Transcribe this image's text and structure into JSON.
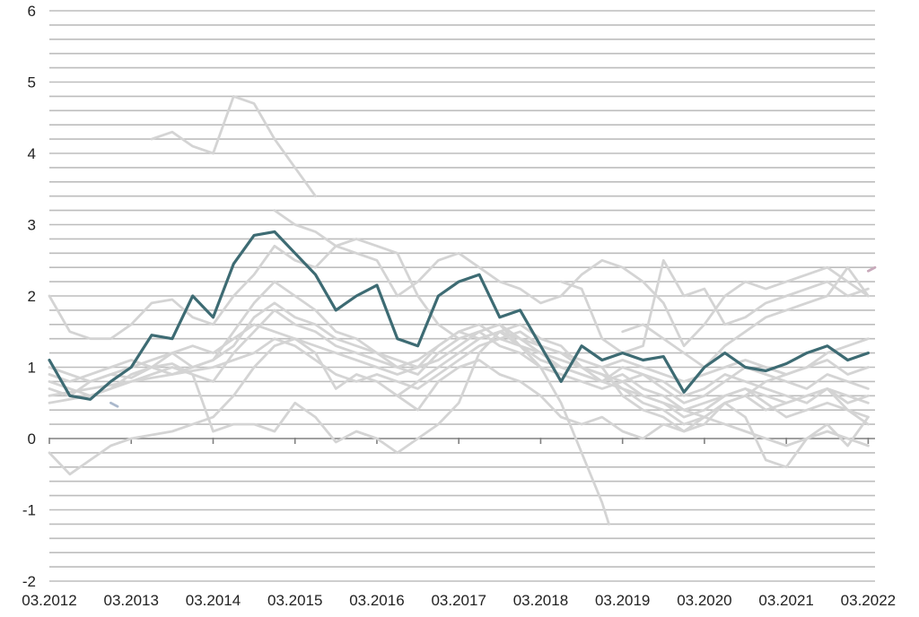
{
  "chart_data": {
    "type": "line",
    "title": "",
    "xlabel": "",
    "ylabel": "",
    "ylim": [
      -2,
      6
    ],
    "xlim": [
      "2012-03",
      "2022-04"
    ],
    "y_ticks": [
      "6",
      "5",
      "4",
      "3",
      "2",
      "1",
      "0",
      "-1",
      "-2"
    ],
    "x_ticks": [
      "03.2012",
      "03.2013",
      "03.2014",
      "03.2015",
      "03.2016",
      "03.2017",
      "03.2018",
      "03.2019",
      "03.2020",
      "03.2021",
      "03.2022"
    ],
    "grid": true,
    "legend": "none",
    "colors": {
      "highlight": "#3d6b73",
      "background_series": "#d4d4d4",
      "grid": "#bdbdbd",
      "zero_line": "#808080"
    },
    "series": [
      {
        "color": "#3d6b73",
        "highlight": true,
        "x": [
          "2012-03",
          "2012-06",
          "2012-09",
          "2012-12",
          "2013-03",
          "2013-06",
          "2013-09",
          "2013-12",
          "2014-03",
          "2014-06",
          "2014-09",
          "2014-12",
          "2015-03",
          "2015-06",
          "2015-09",
          "2015-12",
          "2016-03",
          "2016-06",
          "2016-09",
          "2016-12",
          "2017-03",
          "2017-06",
          "2017-09",
          "2017-12",
          "2018-03",
          "2018-06",
          "2018-09",
          "2018-12",
          "2019-03",
          "2019-06",
          "2019-09",
          "2019-12",
          "2020-03",
          "2020-06",
          "2020-09",
          "2020-12",
          "2021-03",
          "2021-06",
          "2021-09",
          "2021-12",
          "2022-03"
        ],
        "y": [
          1.1,
          0.6,
          0.55,
          0.8,
          1.0,
          1.45,
          1.4,
          2.0,
          1.7,
          2.45,
          2.85,
          2.9,
          2.6,
          2.3,
          1.8,
          2.0,
          2.15,
          1.4,
          1.3,
          2.0,
          2.2,
          2.3,
          1.7,
          1.8,
          1.3,
          0.8,
          1.3,
          1.1,
          1.2,
          1.1,
          1.15,
          0.65,
          1.0,
          1.2,
          1.0,
          0.95,
          1.05,
          1.2,
          1.3,
          1.1,
          1.2
        ]
      },
      {
        "color": "#d4d4d4",
        "x": [
          "2012-03",
          "2012-06",
          "2012-09",
          "2012-12",
          "2013-03",
          "2013-06",
          "2013-09",
          "2013-12",
          "2014-03",
          "2014-06",
          "2014-09",
          "2014-12",
          "2015-03",
          "2015-06",
          "2015-09",
          "2015-12",
          "2016-03",
          "2016-06",
          "2016-09",
          "2016-12",
          "2017-03",
          "2017-06",
          "2017-09",
          "2017-12",
          "2018-03",
          "2018-06",
          "2018-09",
          "2018-12",
          "2019-03",
          "2019-06",
          "2019-09",
          "2019-12",
          "2020-03",
          "2020-06",
          "2020-09",
          "2020-12",
          "2021-03",
          "2021-06",
          "2021-09",
          "2021-12",
          "2022-03"
        ],
        "y": [
          2.0,
          1.5,
          1.4,
          1.4,
          1.6,
          1.9,
          1.95,
          1.7,
          1.6,
          2.0,
          2.3,
          2.7,
          2.5,
          2.4,
          2.7,
          2.6,
          2.5,
          2.0,
          2.2,
          2.5,
          2.6,
          2.4,
          2.2,
          2.1,
          1.9,
          2.0,
          2.3,
          2.5,
          2.4,
          2.2,
          1.9,
          1.3,
          1.6,
          2.0,
          2.2,
          2.1,
          2.2,
          2.3,
          2.4,
          2.2,
          2.0
        ]
      },
      {
        "color": "#d4d4d4",
        "x": [
          "2012-03",
          "2012-06",
          "2012-09",
          "2012-12",
          "2013-03",
          "2013-06",
          "2013-09",
          "2013-12",
          "2014-03",
          "2014-06",
          "2014-09",
          "2014-12",
          "2015-03",
          "2015-06",
          "2015-09",
          "2015-12",
          "2016-03",
          "2016-06",
          "2016-09",
          "2016-12",
          "2017-03",
          "2017-06",
          "2017-09",
          "2017-12",
          "2018-03",
          "2018-06",
          "2018-09",
          "2018-12",
          "2019-03",
          "2019-06",
          "2019-09",
          "2019-12",
          "2020-03",
          "2020-06",
          "2020-09",
          "2020-12",
          "2021-03",
          "2021-06",
          "2021-09",
          "2021-12",
          "2022-03"
        ],
        "y": [
          -0.2,
          -0.5,
          -0.3,
          -0.1,
          0.0,
          0.05,
          0.1,
          0.2,
          0.3,
          0.6,
          1.0,
          1.3,
          1.4,
          1.2,
          0.7,
          0.9,
          0.8,
          0.6,
          0.4,
          0.8,
          1.0,
          1.1,
          0.9,
          0.8,
          0.6,
          0.3,
          0.2,
          0.3,
          0.1,
          0.0,
          0.2,
          0.1,
          0.3,
          0.5,
          0.6,
          0.4,
          0.5,
          0.6,
          0.7,
          0.5,
          0.6
        ]
      },
      {
        "color": "#d4d4d4",
        "x": [
          "2012-03",
          "2012-06",
          "2012-09",
          "2012-12",
          "2013-03",
          "2013-06",
          "2013-09",
          "2013-12",
          "2014-03",
          "2014-06",
          "2014-09",
          "2014-12",
          "2015-03",
          "2015-06",
          "2015-09",
          "2015-12",
          "2016-03",
          "2016-06",
          "2016-09",
          "2016-12",
          "2017-03",
          "2017-06",
          "2017-09",
          "2017-12",
          "2018-03",
          "2018-06",
          "2018-09",
          "2018-12",
          "2019-03",
          "2019-06",
          "2019-09",
          "2019-12",
          "2020-03",
          "2020-06",
          "2020-09",
          "2020-12",
          "2021-03",
          "2021-06",
          "2021-09",
          "2021-12",
          "2022-03"
        ],
        "y": [
          0.8,
          0.7,
          0.6,
          0.7,
          0.8,
          0.9,
          1.0,
          0.9,
          0.8,
          1.2,
          1.5,
          1.8,
          1.6,
          1.5,
          1.3,
          1.2,
          1.1,
          1.0,
          0.9,
          1.2,
          1.4,
          1.5,
          1.3,
          1.2,
          1.0,
          0.9,
          0.8,
          0.7,
          0.8,
          0.6,
          0.5,
          0.3,
          0.4,
          0.6,
          0.7,
          0.5,
          0.3,
          0.4,
          0.5,
          0.4,
          0.2
        ]
      },
      {
        "color": "#d4d4d4",
        "x": [
          "2012-03",
          "2012-06",
          "2012-09",
          "2012-12",
          "2013-03",
          "2013-06",
          "2013-09",
          "2013-12",
          "2014-03",
          "2014-06",
          "2014-09",
          "2014-12",
          "2015-03",
          "2015-06",
          "2015-09",
          "2015-12",
          "2016-03",
          "2016-06",
          "2016-09",
          "2016-12",
          "2017-03",
          "2017-06",
          "2017-09",
          "2017-12",
          "2018-03",
          "2018-06",
          "2018-09",
          "2018-12",
          "2019-03",
          "2019-06",
          "2019-09",
          "2019-12",
          "2020-03",
          "2020-06",
          "2020-09",
          "2020-12",
          "2021-03",
          "2021-06",
          "2021-09",
          "2021-12",
          "2022-03"
        ],
        "y": [
          0.7,
          0.6,
          0.8,
          0.9,
          0.85,
          1.0,
          0.9,
          1.0,
          1.1,
          1.5,
          1.9,
          2.2,
          2.0,
          1.8,
          1.5,
          1.4,
          1.2,
          1.1,
          1.0,
          1.3,
          1.5,
          1.6,
          1.4,
          1.3,
          1.1,
          1.0,
          0.9,
          0.8,
          0.9,
          0.7,
          0.6,
          0.4,
          0.5,
          0.6,
          0.7,
          0.6,
          0.5,
          0.6,
          0.7,
          0.6,
          0.5
        ]
      },
      {
        "color": "#d4d4d4",
        "x": [
          "2013-06",
          "2013-09",
          "2013-12",
          "2014-03",
          "2014-06",
          "2014-09",
          "2014-12",
          "2015-03",
          "2015-06"
        ],
        "y": [
          4.2,
          4.3,
          4.1,
          4.0,
          4.8,
          4.7,
          4.2,
          3.8,
          3.4
        ]
      },
      {
        "color": "#d4d4d4",
        "x": [
          "2014-12",
          "2015-03",
          "2015-06",
          "2015-09",
          "2015-12",
          "2016-03",
          "2016-06",
          "2016-09",
          "2016-12",
          "2017-03",
          "2017-06",
          "2017-09",
          "2017-12",
          "2018-03",
          "2018-06",
          "2018-09",
          "2018-12",
          "2019-01"
        ],
        "y": [
          3.2,
          3.0,
          2.9,
          2.7,
          2.8,
          2.7,
          2.6,
          2.0,
          1.6,
          1.4,
          1.5,
          1.6,
          1.3,
          1.0,
          0.5,
          -0.2,
          -0.9,
          -1.2
        ]
      },
      {
        "color": "#d4d4d4",
        "x": [
          "2012-03",
          "2012-06",
          "2012-09",
          "2012-12",
          "2013-03",
          "2013-06",
          "2013-09",
          "2013-12",
          "2014-03",
          "2014-06",
          "2014-09",
          "2014-12",
          "2015-03",
          "2015-06",
          "2015-09",
          "2015-12",
          "2016-03",
          "2016-06",
          "2016-09",
          "2016-12",
          "2017-03",
          "2017-06",
          "2017-09",
          "2017-12",
          "2018-03",
          "2018-06",
          "2018-09",
          "2018-12",
          "2019-03",
          "2019-06",
          "2019-09",
          "2019-12",
          "2020-03",
          "2020-06",
          "2020-09",
          "2020-12",
          "2021-03",
          "2021-06",
          "2021-09",
          "2021-12",
          "2022-03"
        ],
        "y": [
          0.5,
          0.55,
          0.6,
          0.7,
          0.9,
          1.0,
          1.05,
          0.9,
          0.1,
          0.2,
          0.2,
          0.1,
          0.5,
          0.3,
          -0.05,
          0.1,
          0.0,
          -0.2,
          0.0,
          0.2,
          0.5,
          1.2,
          1.5,
          1.6,
          1.4,
          1.3,
          1.0,
          0.9,
          0.7,
          0.5,
          0.4,
          0.2,
          0.3,
          0.5,
          0.6,
          0.8,
          0.9,
          1.0,
          1.2,
          1.3,
          1.4
        ]
      },
      {
        "color": "#d4d4d4",
        "x": [
          "2012-03",
          "2012-06",
          "2012-09",
          "2012-12",
          "2013-03",
          "2013-06",
          "2013-09",
          "2013-12",
          "2014-03",
          "2014-06",
          "2014-09",
          "2014-12",
          "2015-03",
          "2015-06",
          "2015-09",
          "2015-12",
          "2016-03",
          "2016-06",
          "2016-09",
          "2016-12",
          "2017-03",
          "2017-06",
          "2017-09",
          "2017-12",
          "2018-03",
          "2018-06",
          "2018-09",
          "2018-12",
          "2019-03",
          "2019-06",
          "2019-09",
          "2019-12",
          "2020-03",
          "2020-06",
          "2020-09",
          "2020-12",
          "2021-03",
          "2021-06",
          "2021-09",
          "2021-12",
          "2022-03"
        ],
        "y": [
          0.9,
          0.8,
          0.9,
          1.0,
          1.1,
          1.0,
          1.2,
          1.0,
          1.1,
          1.3,
          1.7,
          1.9,
          1.7,
          1.6,
          1.4,
          1.3,
          1.2,
          1.0,
          1.1,
          1.3,
          1.5,
          1.4,
          1.5,
          1.4,
          1.2,
          1.1,
          1.0,
          0.8,
          1.0,
          0.9,
          0.7,
          0.5,
          0.6,
          0.8,
          1.0,
          0.9,
          0.8,
          0.7,
          0.9,
          0.8,
          0.7
        ]
      },
      {
        "color": "#d4d4d4",
        "x": [
          "2012-03",
          "2012-06",
          "2012-09",
          "2012-12",
          "2013-03",
          "2013-06",
          "2013-09",
          "2013-12",
          "2014-03",
          "2014-06",
          "2014-09",
          "2014-12",
          "2015-03",
          "2015-06",
          "2015-09",
          "2015-12",
          "2016-03",
          "2016-06",
          "2016-09",
          "2016-12",
          "2017-03",
          "2017-06",
          "2017-09",
          "2017-12",
          "2018-03",
          "2018-06",
          "2018-09",
          "2018-12",
          "2019-03",
          "2019-06",
          "2019-09",
          "2019-12",
          "2020-03",
          "2020-06",
          "2020-09",
          "2020-12",
          "2021-03",
          "2021-06",
          "2021-09",
          "2021-12",
          "2022-03"
        ],
        "y": [
          0.6,
          0.65,
          0.7,
          0.75,
          0.8,
          0.85,
          0.9,
          0.95,
          1.0,
          1.1,
          1.2,
          1.4,
          1.3,
          1.1,
          0.9,
          0.8,
          0.9,
          0.8,
          0.7,
          0.9,
          1.1,
          1.3,
          1.4,
          1.5,
          1.3,
          1.2,
          1.0,
          0.9,
          0.8,
          0.9,
          0.8,
          0.6,
          0.7,
          0.9,
          0.8,
          0.7,
          0.6,
          0.5,
          0.7,
          0.4,
          0.3
        ]
      },
      {
        "color": "#d4d4d4",
        "x": [
          "2012-03",
          "2012-06",
          "2012-09",
          "2012-12",
          "2013-03",
          "2013-06",
          "2013-09",
          "2013-12",
          "2014-03",
          "2014-06",
          "2014-09",
          "2014-12",
          "2015-03",
          "2015-06",
          "2015-09",
          "2015-12",
          "2016-03",
          "2016-06",
          "2016-09",
          "2016-12",
          "2017-03",
          "2017-06",
          "2017-09",
          "2017-12",
          "2018-03",
          "2018-06",
          "2018-09",
          "2018-12",
          "2019-03",
          "2019-06",
          "2019-09",
          "2019-12",
          "2020-03",
          "2020-06",
          "2020-09",
          "2020-12",
          "2021-03",
          "2021-06",
          "2021-09",
          "2021-12",
          "2022-03"
        ],
        "y": [
          1.0,
          0.9,
          0.8,
          0.9,
          1.0,
          1.1,
          1.2,
          1.3,
          1.2,
          1.4,
          1.6,
          1.5,
          1.4,
          1.3,
          1.2,
          1.1,
          1.0,
          0.9,
          1.0,
          1.1,
          1.3,
          1.5,
          1.6,
          1.4,
          1.3,
          1.2,
          1.1,
          1.0,
          1.1,
          1.0,
          0.9,
          0.8,
          0.9,
          1.0,
          1.1,
          1.0,
          0.9,
          1.0,
          1.1,
          0.9,
          1.0
        ]
      },
      {
        "color": "#d4d4d4",
        "x": [
          "2016-06",
          "2016-09",
          "2016-12",
          "2017-03",
          "2017-06",
          "2017-09",
          "2017-12",
          "2018-03",
          "2018-06",
          "2018-09",
          "2018-12",
          "2019-03",
          "2019-06",
          "2019-09",
          "2019-12",
          "2020-03",
          "2020-06",
          "2020-09",
          "2020-12",
          "2021-03",
          "2021-06",
          "2021-09",
          "2021-12",
          "2022-03"
        ],
        "y": [
          0.6,
          0.8,
          1.0,
          1.2,
          1.4,
          1.5,
          1.3,
          1.2,
          1.0,
          0.9,
          0.8,
          0.7,
          0.6,
          0.5,
          0.4,
          0.3,
          0.2,
          0.1,
          0.0,
          -0.1,
          0.0,
          0.1,
          0.0,
          -0.1
        ]
      },
      {
        "color": "#d4d4d4",
        "x": [
          "2018-06",
          "2018-09",
          "2018-12",
          "2019-03",
          "2019-06",
          "2019-09",
          "2019-12",
          "2020-03",
          "2020-06",
          "2020-09",
          "2020-12",
          "2021-03",
          "2021-06",
          "2021-09",
          "2021-12",
          "2022-03"
        ],
        "y": [
          2.2,
          2.1,
          1.4,
          1.2,
          1.3,
          2.5,
          2.0,
          2.1,
          1.6,
          1.7,
          1.9,
          2.0,
          2.1,
          2.2,
          2.0,
          2.1
        ]
      },
      {
        "color": "#d4d4d4",
        "x": [
          "2018-12",
          "2019-03",
          "2019-06",
          "2019-09",
          "2019-12",
          "2020-03",
          "2020-06",
          "2020-09",
          "2020-12",
          "2021-03",
          "2021-06",
          "2021-09",
          "2021-12",
          "2022-03"
        ],
        "y": [
          1.0,
          0.6,
          0.4,
          0.3,
          0.1,
          0.2,
          0.5,
          0.3,
          -0.3,
          -0.4,
          0.0,
          0.2,
          -0.1,
          0.3
        ]
      },
      {
        "color": "#d4d4d4",
        "x": [
          "2019-03",
          "2019-06",
          "2019-09",
          "2019-12",
          "2020-03",
          "2020-06",
          "2020-09",
          "2020-12",
          "2021-03",
          "2021-06",
          "2021-09",
          "2021-12",
          "2022-03"
        ],
        "y": [
          1.5,
          1.6,
          1.4,
          1.2,
          1.0,
          1.3,
          1.5,
          1.7,
          1.8,
          1.9,
          2.0,
          2.4,
          2.0
        ]
      },
      {
        "color": "#c8aabb",
        "x": [
          "2022-03",
          "2022-04"
        ],
        "y": [
          2.35,
          2.4
        ]
      },
      {
        "color": "#aab8cc",
        "x": [
          "2012-12",
          "2013-01"
        ],
        "y": [
          0.5,
          0.45
        ]
      }
    ]
  }
}
